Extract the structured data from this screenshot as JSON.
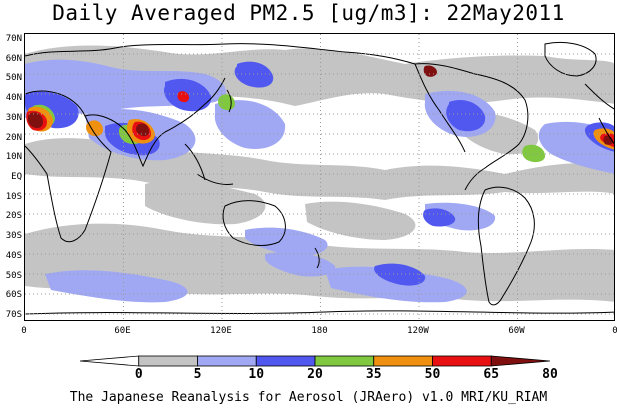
{
  "title": "Daily Averaged PM2.5 [ug/m3]: 22May2011",
  "footer": "The Japanese Reanalysis for Aerosol (JRAero) v1.0 MRI/KU_RIAM",
  "lat_labels": [
    "70N",
    "60N",
    "50N",
    "40N",
    "30N",
    "20N",
    "10N",
    "EQ",
    "10S",
    "20S",
    "30S",
    "40S",
    "50S",
    "60S",
    "70S"
  ],
  "lon_labels": [
    "0",
    "60E",
    "120E",
    "180",
    "120W",
    "60W",
    "0"
  ],
  "colorbar": {
    "levels": [
      "0",
      "5",
      "10",
      "20",
      "35",
      "50",
      "65",
      "80"
    ],
    "colors": [
      "#ffffff",
      "#c4c4c4",
      "#a0a8f4",
      "#5058f0",
      "#80c840",
      "#f09010",
      "#e81010",
      "#801010"
    ]
  },
  "map": {
    "ocean": "#ffffff",
    "coast": "#000000",
    "grid": "#9a9a9a"
  }
}
